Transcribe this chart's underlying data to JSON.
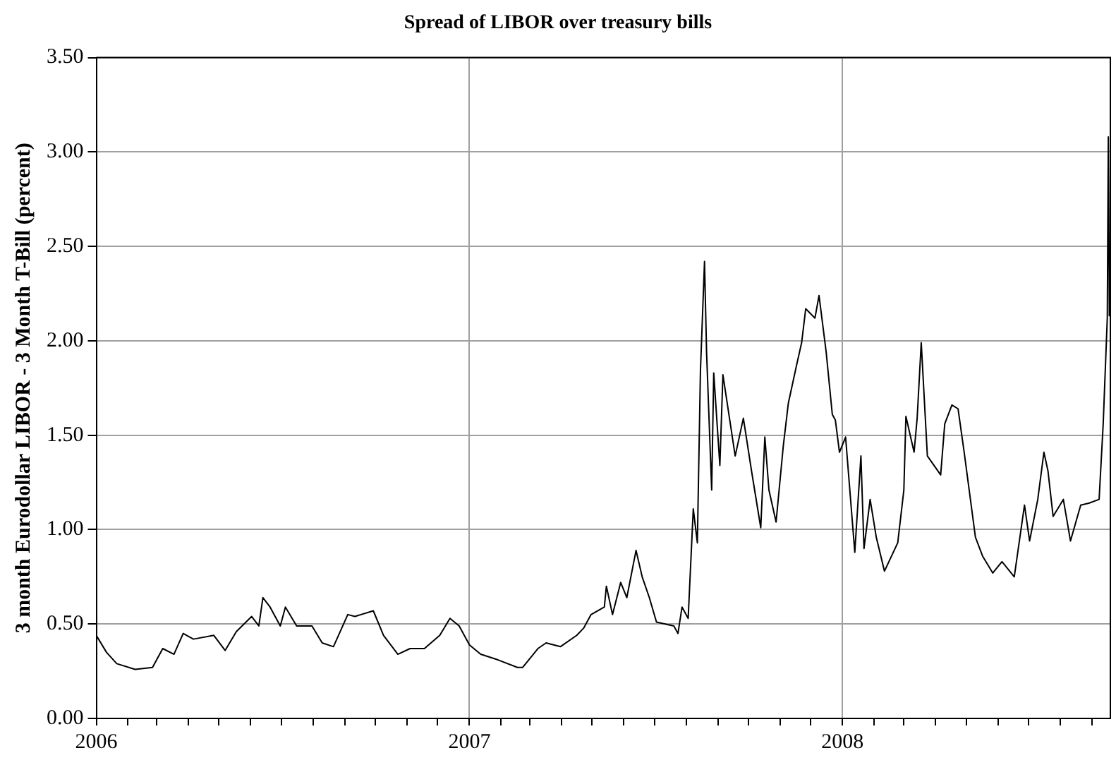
{
  "chart_data": {
    "type": "line",
    "title": "Spread of LIBOR over treasury bills",
    "ylabel": "3 month Eurodollar LIBOR - 3 Month T-Bill (percent)",
    "x": [
      "2006-01-01",
      "2006-01-11",
      "2006-01-21",
      "2006-02-08",
      "2006-02-25",
      "2006-03-07",
      "2006-03-18",
      "2006-03-27",
      "2006-04-06",
      "2006-04-26",
      "2006-05-07",
      "2006-05-18",
      "2006-06-02",
      "2006-06-09",
      "2006-06-13",
      "2006-06-20",
      "2006-06-30",
      "2006-07-05",
      "2006-07-16",
      "2006-07-31",
      "2006-08-10",
      "2006-08-21",
      "2006-09-04",
      "2006-09-11",
      "2006-09-29",
      "2006-10-09",
      "2006-10-23",
      "2006-11-04",
      "2006-11-18",
      "2006-12-03",
      "2006-12-13",
      "2006-12-22",
      "2007-01-01",
      "2007-01-12",
      "2007-01-29",
      "2007-02-17",
      "2007-02-22",
      "2007-03-09",
      "2007-03-17",
      "2007-03-31",
      "2007-04-16",
      "2007-04-23",
      "2007-04-30",
      "2007-05-13",
      "2007-05-15",
      "2007-05-21",
      "2007-05-29",
      "2007-06-04",
      "2007-06-13",
      "2007-06-19",
      "2007-06-26",
      "2007-07-03",
      "2007-07-20",
      "2007-07-24",
      "2007-07-28",
      "2007-08-03",
      "2007-08-08",
      "2007-08-12",
      "2007-08-15",
      "2007-08-19",
      "2007-08-21",
      "2007-08-26",
      "2007-08-28",
      "2007-09-03",
      "2007-09-06",
      "2007-09-18",
      "2007-09-26",
      "2007-10-04",
      "2007-10-13",
      "2007-10-17",
      "2007-10-21",
      "2007-10-28",
      "2007-11-04",
      "2007-11-09",
      "2007-11-17",
      "2007-11-22",
      "2007-11-26",
      "2007-12-05",
      "2007-12-09",
      "2007-12-16",
      "2007-12-22",
      "2007-12-25",
      "2007-12-29",
      "2008-01-04",
      "2008-01-13",
      "2008-01-19",
      "2008-01-22",
      "2008-01-28",
      "2008-02-03",
      "2008-02-11",
      "2008-02-24",
      "2008-03-01",
      "2008-03-03",
      "2008-03-11",
      "2008-03-14",
      "2008-03-18",
      "2008-03-24",
      "2008-04-06",
      "2008-04-10",
      "2008-04-17",
      "2008-04-23",
      "2008-04-29",
      "2008-05-10",
      "2008-05-17",
      "2008-05-27",
      "2008-06-05",
      "2008-06-17",
      "2008-06-27",
      "2008-07-02",
      "2008-07-10",
      "2008-07-16",
      "2008-07-20",
      "2008-07-25",
      "2008-08-04",
      "2008-08-11",
      "2008-08-21",
      "2008-08-29",
      "2008-09-08",
      "2008-09-12",
      "2008-09-16",
      "2008-09-17",
      "2008-09-18"
    ],
    "series": [
      {
        "color": "#000000",
        "values": [
          0.44,
          0.35,
          0.29,
          0.26,
          0.27,
          0.37,
          0.34,
          0.45,
          0.42,
          0.44,
          0.36,
          0.46,
          0.54,
          0.49,
          0.64,
          0.59,
          0.49,
          0.59,
          0.49,
          0.49,
          0.4,
          0.38,
          0.55,
          0.54,
          0.57,
          0.44,
          0.34,
          0.37,
          0.37,
          0.44,
          0.53,
          0.49,
          0.39,
          0.34,
          0.31,
          0.27,
          0.27,
          0.37,
          0.4,
          0.38,
          0.44,
          0.48,
          0.55,
          0.59,
          0.7,
          0.55,
          0.72,
          0.64,
          0.89,
          0.75,
          0.64,
          0.51,
          0.49,
          0.45,
          0.59,
          0.53,
          1.11,
          0.93,
          1.84,
          2.42,
          1.94,
          1.21,
          1.83,
          1.34,
          1.82,
          1.39,
          1.59,
          1.31,
          1.01,
          1.49,
          1.21,
          1.04,
          1.44,
          1.67,
          1.87,
          1.99,
          2.17,
          2.12,
          2.24,
          1.94,
          1.61,
          1.58,
          1.41,
          1.49,
          0.88,
          1.39,
          0.9,
          1.16,
          0.96,
          0.78,
          0.93,
          1.21,
          1.6,
          1.41,
          1.59,
          1.99,
          1.39,
          1.29,
          1.56,
          1.66,
          1.64,
          1.41,
          0.96,
          0.86,
          0.77,
          0.83,
          0.75,
          1.13,
          0.94,
          1.16,
          1.41,
          1.31,
          1.07,
          1.16,
          0.94,
          1.13,
          1.14,
          1.16,
          1.56,
          2.12,
          3.08,
          2.13
        ]
      }
    ],
    "xlim": [
      "2006-01-01",
      "2008-09-19"
    ],
    "xticks": [
      {
        "value": "2006-01-01",
        "label": "2006"
      },
      {
        "value": "2006-02-01",
        "label": null
      },
      {
        "value": "2006-03-01",
        "label": null
      },
      {
        "value": "2006-04-01",
        "label": null
      },
      {
        "value": "2006-05-01",
        "label": null
      },
      {
        "value": "2006-06-01",
        "label": null
      },
      {
        "value": "2006-07-01",
        "label": null
      },
      {
        "value": "2006-08-01",
        "label": null
      },
      {
        "value": "2006-09-01",
        "label": null
      },
      {
        "value": "2006-10-01",
        "label": null
      },
      {
        "value": "2006-11-01",
        "label": null
      },
      {
        "value": "2006-12-01",
        "label": null
      },
      {
        "value": "2007-01-01",
        "label": "2007"
      },
      {
        "value": "2007-02-01",
        "label": null
      },
      {
        "value": "2007-03-01",
        "label": null
      },
      {
        "value": "2007-04-01",
        "label": null
      },
      {
        "value": "2007-05-01",
        "label": null
      },
      {
        "value": "2007-06-01",
        "label": null
      },
      {
        "value": "2007-07-01",
        "label": null
      },
      {
        "value": "2007-08-01",
        "label": null
      },
      {
        "value": "2007-09-01",
        "label": null
      },
      {
        "value": "2007-10-01",
        "label": null
      },
      {
        "value": "2007-11-01",
        "label": null
      },
      {
        "value": "2007-12-01",
        "label": null
      },
      {
        "value": "2008-01-01",
        "label": "2008"
      },
      {
        "value": "2008-02-01",
        "label": null
      },
      {
        "value": "2008-03-01",
        "label": null
      },
      {
        "value": "2008-04-01",
        "label": null
      },
      {
        "value": "2008-05-01",
        "label": null
      },
      {
        "value": "2008-06-01",
        "label": null
      },
      {
        "value": "2008-07-01",
        "label": null
      },
      {
        "value": "2008-08-01",
        "label": null
      },
      {
        "value": "2008-09-01",
        "label": null
      }
    ],
    "ylim": [
      0,
      3.5
    ],
    "yticks": [
      {
        "value": 0,
        "label": "0.00"
      },
      {
        "value": 0.5,
        "label": "0.50"
      },
      {
        "value": 1,
        "label": "1.00"
      },
      {
        "value": 1.5,
        "label": "1.50"
      },
      {
        "value": 2,
        "label": "2.00"
      },
      {
        "value": 2.5,
        "label": "2.50"
      },
      {
        "value": 3,
        "label": "3.00"
      },
      {
        "value": 3.5,
        "label": "3.50"
      }
    ],
    "grid": true,
    "legend": false,
    "marker": "none",
    "line_style": "solid"
  }
}
